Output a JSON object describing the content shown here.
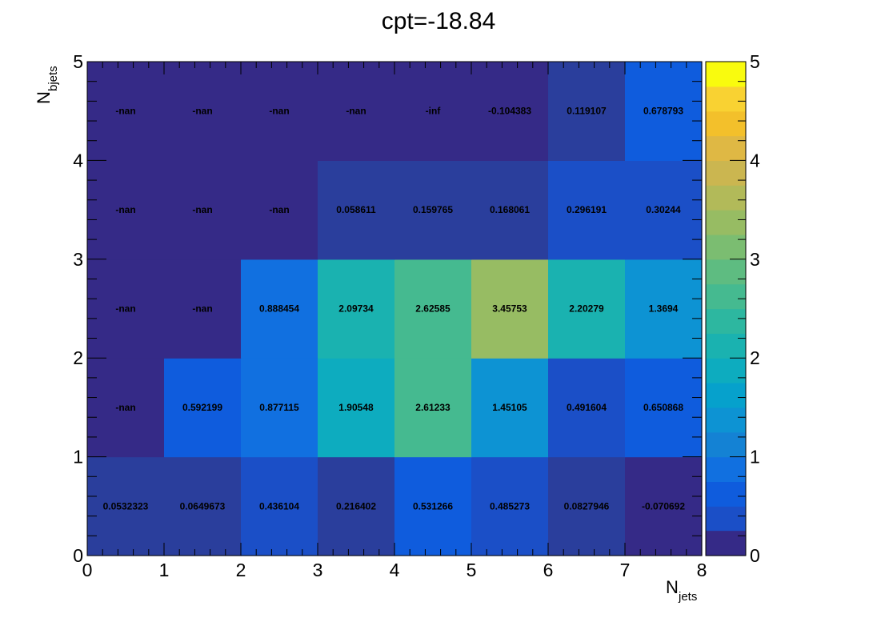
{
  "chart_data": {
    "type": "heatmap",
    "title": "cpt=-18.84",
    "xlabel": {
      "main": "N",
      "sub": "jets"
    },
    "ylabel": {
      "main": "N",
      "sub": "bjets"
    },
    "x_edges": [
      0,
      1,
      2,
      3,
      4,
      5,
      6,
      7,
      8
    ],
    "y_edges": [
      0,
      1,
      2,
      3,
      4,
      5
    ],
    "x_ticks": [
      "0",
      "1",
      "2",
      "3",
      "4",
      "5",
      "6",
      "7",
      "8"
    ],
    "y_ticks": [
      "0",
      "1",
      "2",
      "3",
      "4",
      "5"
    ],
    "xlim": [
      0,
      8
    ],
    "ylim": [
      0,
      5
    ],
    "zlim": [
      0,
      5
    ],
    "colorbar_ticks": [
      "0",
      "1",
      "2",
      "3",
      "4",
      "5"
    ],
    "colormap": "parula",
    "colormap_bands": 20,
    "grid": false,
    "rows": [
      {
        "nbjets_bin": "0-1",
        "labels": [
          "0.0532323",
          "0.0649673",
          "0.436104",
          "0.216402",
          "0.531266",
          "0.485273",
          "0.0827946",
          "-0.070692"
        ],
        "values": [
          0.0532323,
          0.0649673,
          0.436104,
          0.216402,
          0.531266,
          0.485273,
          0.0827946,
          -0.070692
        ]
      },
      {
        "nbjets_bin": "1-2",
        "labels": [
          "-nan",
          "0.592199",
          "0.877115",
          "1.90548",
          "2.61233",
          "1.45105",
          "0.491604",
          "0.650868"
        ],
        "values": [
          null,
          0.592199,
          0.877115,
          1.90548,
          2.61233,
          1.45105,
          0.491604,
          0.650868
        ]
      },
      {
        "nbjets_bin": "2-3",
        "labels": [
          "-nan",
          "-nan",
          "0.888454",
          "2.09734",
          "2.62585",
          "3.45753",
          "2.20279",
          "1.3694"
        ],
        "values": [
          null,
          null,
          0.888454,
          2.09734,
          2.62585,
          3.45753,
          2.20279,
          1.3694
        ]
      },
      {
        "nbjets_bin": "3-4",
        "labels": [
          "-nan",
          "-nan",
          "-nan",
          "0.058611",
          "0.159765",
          "0.168061",
          "0.296191",
          "0.30244"
        ],
        "values": [
          null,
          null,
          null,
          0.058611,
          0.159765,
          0.168061,
          0.296191,
          0.30244
        ]
      },
      {
        "nbjets_bin": "4-5",
        "labels": [
          "-nan",
          "-nan",
          "-nan",
          "-nan",
          "-inf",
          "-0.104383",
          "0.119107",
          "0.678793"
        ],
        "values": [
          null,
          null,
          null,
          null,
          null,
          -0.104383,
          0.119107,
          0.678793
        ]
      }
    ]
  },
  "colors": {
    "palette": [
      "#352a87",
      "#2a3e9c",
      "#1b4fc7",
      "#0f5cdd",
      "#1170e0",
      "#1482d4",
      "#0d93d3",
      "#06a1cc",
      "#0dacbf",
      "#1ab2b0",
      "#2db7a0",
      "#45ba90",
      "#5ebc81",
      "#7bbd71",
      "#97bc63",
      "#b2ba59",
      "#cbb650",
      "#dfb844",
      "#f3c02b",
      "#f9d232",
      "#f9fb0e"
    ],
    "background": "#ffffff",
    "axis": "#000000"
  }
}
